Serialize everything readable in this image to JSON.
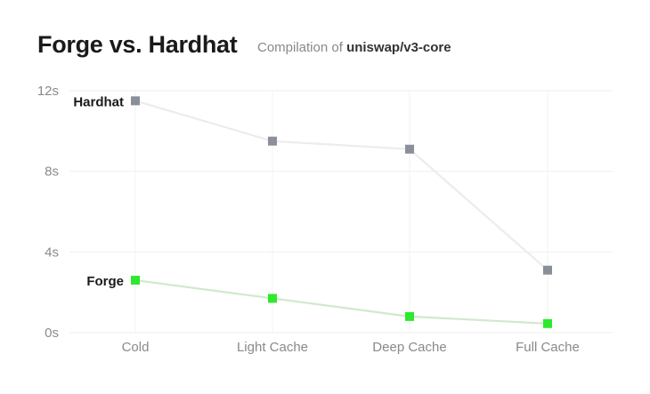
{
  "title": "Forge vs. Hardhat",
  "subtitle_prefix": "Compilation of ",
  "subtitle_repo": "uniswap/v3-core",
  "chart_data": {
    "type": "line",
    "categories": [
      "Cold",
      "Light Cache",
      "Deep Cache",
      "Full Cache"
    ],
    "ylim": [
      0,
      12
    ],
    "yticks": [
      0,
      4,
      8,
      12
    ],
    "ytick_labels": [
      "0s",
      "4s",
      "8s",
      "12s"
    ],
    "grid": true,
    "series": [
      {
        "name": "Hardhat",
        "values": [
          11.5,
          9.5,
          9.1,
          3.1
        ],
        "color": "#8a8f99",
        "line_color": "#ececec"
      },
      {
        "name": "Forge",
        "values": [
          2.6,
          1.7,
          0.8,
          0.45
        ],
        "color": "#2ee82e",
        "line_color": "#cfeacb"
      }
    ]
  }
}
